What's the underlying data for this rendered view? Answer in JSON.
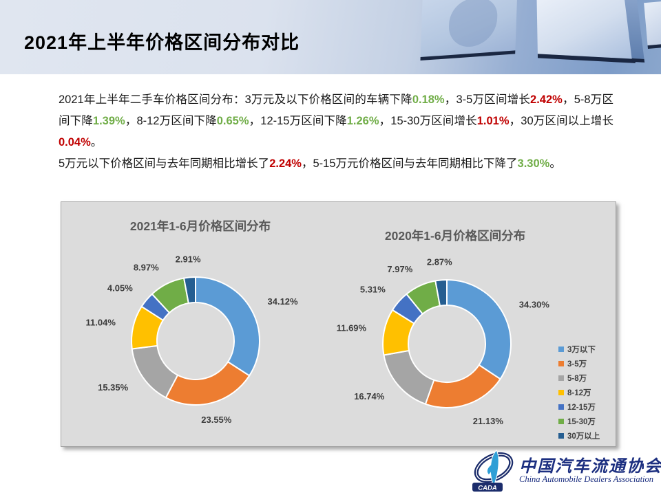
{
  "header": {
    "title": "2021年上半年价格区间分布对比"
  },
  "colors": {
    "increase": "#C00000",
    "decrease": "#70AD47",
    "body_text": "#191919",
    "panel_bg": "#dcdcdc",
    "chart_title": "#595959"
  },
  "paragraphs": [
    [
      {
        "t": "2021年上半年二手车价格区间分布：3万元及以下价格区间的车辆下降"
      },
      {
        "t": "0.18%",
        "c": "decrease"
      },
      {
        "t": "，3-5万区间增长"
      },
      {
        "t": "2.42%",
        "c": "increase"
      },
      {
        "t": "，5-8万区间下降"
      },
      {
        "t": "1.39%",
        "c": "decrease"
      },
      {
        "t": "，8-12万区间下降"
      },
      {
        "t": "0.65%",
        "c": "decrease"
      },
      {
        "t": "，12-15万区间下降"
      },
      {
        "t": "1.26%",
        "c": "decrease"
      },
      {
        "t": "，15-30万区间增长"
      },
      {
        "t": "1.01%",
        "c": "increase"
      },
      {
        "t": "，30万区间以上增长"
      },
      {
        "t": "0.04%",
        "c": "increase"
      },
      {
        "t": "。"
      }
    ],
    [
      {
        "t": "5万元以下价格区间与去年同期相比增长了"
      },
      {
        "t": "2.24%",
        "c": "increase"
      },
      {
        "t": "，5-15万元价格区间与去年同期相比下降了"
      },
      {
        "t": "3.30%",
        "c": "decrease"
      },
      {
        "t": "。"
      }
    ]
  ],
  "chart_data": [
    {
      "type": "pie",
      "subtype": "donut",
      "title": "2021年1-6月价格区间分布",
      "categories": [
        "3万以下",
        "3-5万",
        "5-8万",
        "8-12万",
        "12-15万",
        "15-30万",
        "30万以上"
      ],
      "values": [
        34.12,
        23.55,
        15.35,
        11.04,
        4.05,
        8.97,
        2.91
      ],
      "data_labels": [
        "34.12%",
        "23.55%",
        "15.35%",
        "11.04%",
        "4.05%",
        "8.97%",
        "2.91%"
      ],
      "slice_colors": [
        "#5B9BD5",
        "#ED7D31",
        "#A5A5A5",
        "#FFC000",
        "#4472C4",
        "#70AD47",
        "#255E91"
      ],
      "start_angle_deg": 0,
      "direction": "clockwise",
      "legend_position": "none"
    },
    {
      "type": "pie",
      "subtype": "donut",
      "title": "2020年1-6月价格区间分布",
      "categories": [
        "3万以下",
        "3-5万",
        "5-8万",
        "8-12万",
        "12-15万",
        "15-30万",
        "30万以上"
      ],
      "values": [
        34.3,
        21.13,
        16.74,
        11.69,
        5.31,
        7.97,
        2.87
      ],
      "data_labels": [
        "34.30%",
        "21.13%",
        "16.74%",
        "11.69%",
        "5.31%",
        "7.97%",
        "2.87%"
      ],
      "slice_colors": [
        "#5B9BD5",
        "#ED7D31",
        "#A5A5A5",
        "#FFC000",
        "#4472C4",
        "#70AD47",
        "#255E91"
      ],
      "start_angle_deg": 0,
      "direction": "clockwise",
      "legend_position": "right"
    }
  ],
  "legend": {
    "items": [
      {
        "label": "3万以下",
        "color": "#5B9BD5"
      },
      {
        "label": "3-5万",
        "color": "#ED7D31"
      },
      {
        "label": "5-8万",
        "color": "#A5A5A5"
      },
      {
        "label": "8-12万",
        "color": "#FFC000"
      },
      {
        "label": "12-15万",
        "color": "#4472C4"
      },
      {
        "label": "15-30万",
        "color": "#70AD47"
      },
      {
        "label": "30万以上",
        "color": "#255E91"
      }
    ]
  },
  "footer": {
    "logo_abbr": "CADA",
    "org_cn": "中国汽车流通协会",
    "org_en": "China Automobile Dealers Association"
  }
}
